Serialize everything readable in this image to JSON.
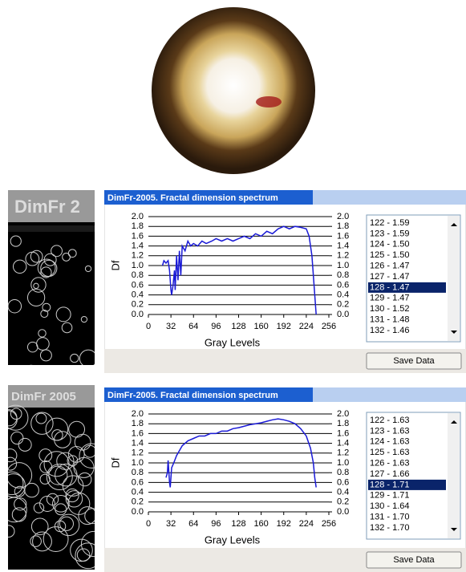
{
  "chart_data": [
    {
      "type": "line",
      "title": "DimFr-2005. Fractal dimension spectrum",
      "x_label": "Gray Levels",
      "y_label": "Df",
      "x": [
        20,
        22,
        25,
        28,
        30,
        32,
        33,
        35,
        37,
        38,
        40,
        42,
        44,
        46,
        48,
        52,
        56,
        60,
        64,
        70,
        76,
        82,
        90,
        96,
        104,
        112,
        120,
        128,
        136,
        144,
        152,
        160,
        168,
        176,
        184,
        192,
        200,
        208,
        216,
        224,
        228,
        232,
        234,
        236,
        238
      ],
      "series": [
        {
          "color": "#1a1ad6",
          "values": [
            1.0,
            1.1,
            1.05,
            1.1,
            0.9,
            0.5,
            0.4,
            0.6,
            0.9,
            0.5,
            1.2,
            0.7,
            1.3,
            0.8,
            1.4,
            1.3,
            1.5,
            1.4,
            1.45,
            1.4,
            1.5,
            1.45,
            1.5,
            1.55,
            1.5,
            1.55,
            1.5,
            1.55,
            1.6,
            1.55,
            1.65,
            1.6,
            1.7,
            1.65,
            1.75,
            1.8,
            1.75,
            1.8,
            1.78,
            1.75,
            1.6,
            1.2,
            0.8,
            0.4,
            0.0
          ]
        }
      ],
      "xlim": [
        0,
        256
      ],
      "xticks": [
        0,
        32,
        64,
        96,
        128,
        160,
        192,
        224,
        256
      ],
      "ylim": [
        0,
        2
      ],
      "yticks": [
        {
          "value": 0,
          "label": "0.0"
        },
        0.2,
        0.4,
        0.6,
        0.8,
        {
          "value": 1,
          "label": "1.0"
        },
        1.2,
        1.4,
        1.6,
        1.8,
        {
          "value": 2,
          "label": "2.0"
        }
      ],
      "y2lim": [
        0,
        2
      ],
      "y2ticks": [
        {
          "value": 0,
          "label": "0.0"
        },
        0.2,
        0.4,
        0.6,
        0.8,
        {
          "value": 1,
          "label": "1.0"
        },
        1.2,
        1.4,
        1.6,
        1.8,
        {
          "value": 2,
          "label": "2.0"
        }
      ],
      "grid": true
    },
    {
      "type": "line",
      "title": "DimFr-2005. Fractal dimension spectrum",
      "x_label": "Gray Levels",
      "y_label": "Df",
      "x": [
        25,
        27,
        28,
        30,
        31,
        33,
        36,
        40,
        44,
        48,
        56,
        64,
        72,
        80,
        88,
        96,
        104,
        112,
        120,
        128,
        136,
        144,
        152,
        160,
        168,
        176,
        184,
        192,
        200,
        208,
        216,
        224,
        230,
        234,
        236,
        238
      ],
      "series": [
        {
          "color": "#1a1ad6",
          "values": [
            0.7,
            0.8,
            1.05,
            0.6,
            0.5,
            0.9,
            1.0,
            1.15,
            1.25,
            1.35,
            1.45,
            1.5,
            1.55,
            1.55,
            1.6,
            1.6,
            1.65,
            1.65,
            1.7,
            1.72,
            1.75,
            1.78,
            1.8,
            1.82,
            1.85,
            1.88,
            1.9,
            1.88,
            1.85,
            1.8,
            1.7,
            1.55,
            1.3,
            1.0,
            0.7,
            0.5
          ]
        }
      ],
      "xlim": [
        0,
        256
      ],
      "xticks": [
        0,
        32,
        64,
        96,
        128,
        160,
        192,
        224,
        256
      ],
      "ylim": [
        0,
        2
      ],
      "yticks": [
        {
          "value": 0,
          "label": "0.0"
        },
        0.2,
        0.4,
        0.6,
        0.8,
        {
          "value": 1,
          "label": "1.0"
        },
        1.2,
        1.4,
        1.6,
        1.8,
        {
          "value": 2,
          "label": "2.0"
        }
      ],
      "y2lim": [
        0,
        2
      ],
      "y2ticks": [
        {
          "value": 0,
          "label": "0.0"
        },
        0.2,
        0.4,
        0.6,
        0.8,
        {
          "value": 1,
          "label": "1.0"
        },
        1.2,
        1.4,
        1.6,
        1.8,
        {
          "value": 2,
          "label": "2.0"
        }
      ],
      "grid": true
    }
  ],
  "windows": [
    {
      "side_label": "DimFr 2",
      "list": [
        "122 - 1.59",
        "123 - 1.59",
        "124 - 1.50",
        "125 - 1.50",
        "126 - 1.47",
        "127 - 1.47",
        "128 - 1.47",
        "129 - 1.47",
        "130 - 1.52",
        "131 - 1.48",
        "132 - 1.46"
      ],
      "button": "Save Data"
    },
    {
      "side_label": "DimFr 2005",
      "list": [
        "122 - 1.63",
        "123 - 1.63",
        "124 - 1.63",
        "125 - 1.63",
        "126 - 1.63",
        "127 - 1.66",
        "128 - 1.71",
        "129 - 1.71",
        "130 - 1.64",
        "131 - 1.70",
        "132 - 1.70"
      ],
      "button": "Save Data"
    }
  ]
}
